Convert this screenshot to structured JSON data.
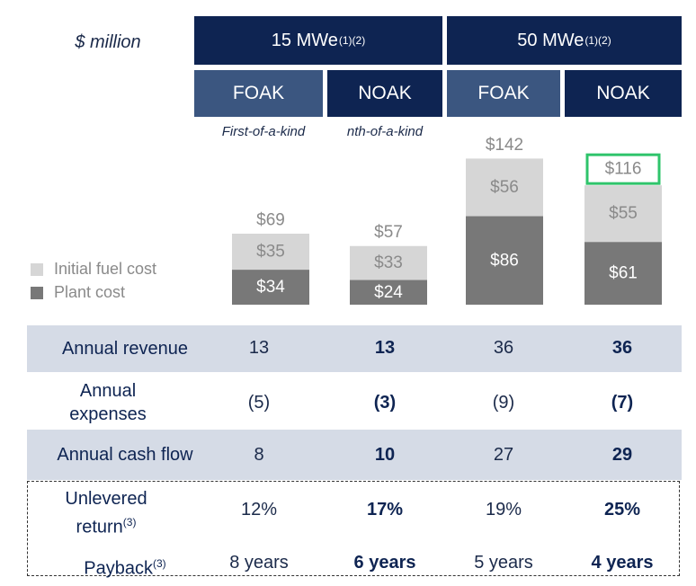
{
  "unit_label": "$ million",
  "groups": [
    {
      "label": "15 MWe",
      "superscript": "(1)(2)"
    },
    {
      "label": "50 MWe",
      "superscript": "(1)(2)"
    }
  ],
  "subheaders": [
    {
      "label": "FOAK",
      "color": "#3b5680"
    },
    {
      "label": "NOAK",
      "color": "#0e2452"
    },
    {
      "label": "FOAK",
      "color": "#3b5680"
    },
    {
      "label": "NOAK",
      "color": "#0e2452"
    }
  ],
  "subheader_notes": [
    "First-of-a-kind",
    "nth-of-a-kind"
  ],
  "legend": [
    {
      "label": "Initial fuel cost",
      "color": "#d6d6d6"
    },
    {
      "label": "Plant cost",
      "color": "#787878"
    }
  ],
  "chart_data": {
    "type": "bar",
    "stacked": true,
    "categories": [
      "15 MWe FOAK",
      "15 MWe NOAK",
      "50 MWe FOAK",
      "50 MWe NOAK"
    ],
    "series": [
      {
        "name": "Plant cost",
        "values": [
          34,
          24,
          86,
          61
        ],
        "labels": [
          "$34",
          "$24",
          "$86",
          "$61"
        ],
        "color": "#787878",
        "text_color": "#ffffff"
      },
      {
        "name": "Initial fuel cost",
        "values": [
          35,
          33,
          56,
          55
        ],
        "labels": [
          "$35",
          "$33",
          "$56",
          "$55"
        ],
        "color": "#d6d6d6",
        "text_color": "#8a8a8a"
      }
    ],
    "totals": [
      69,
      57,
      142,
      116
    ],
    "total_labels": [
      "$69",
      "$57",
      "$142",
      "$116"
    ],
    "highlighted_total_index": 3,
    "highlight_color": "#2fc46b"
  },
  "table": {
    "rows": [
      {
        "label": "Annual revenue",
        "values": [
          "13",
          "13",
          "36",
          "36"
        ],
        "shaded": true
      },
      {
        "label": "Annual expenses",
        "values": [
          "(5)",
          "(3)",
          "(9)",
          "(7)"
        ],
        "shaded": false
      },
      {
        "label": "Annual cash flow",
        "values": [
          "8",
          "10",
          "27",
          "29"
        ],
        "shaded": true
      },
      {
        "label": "Unlevered return",
        "superscript": "(3)",
        "values": [
          "12%",
          "17%",
          "19%",
          "25%"
        ],
        "shaded": false
      },
      {
        "label": "Payback",
        "superscript": "(3)",
        "values": [
          "8 years",
          "6 years",
          "5 years",
          "4 years"
        ],
        "shaded": false
      }
    ]
  }
}
